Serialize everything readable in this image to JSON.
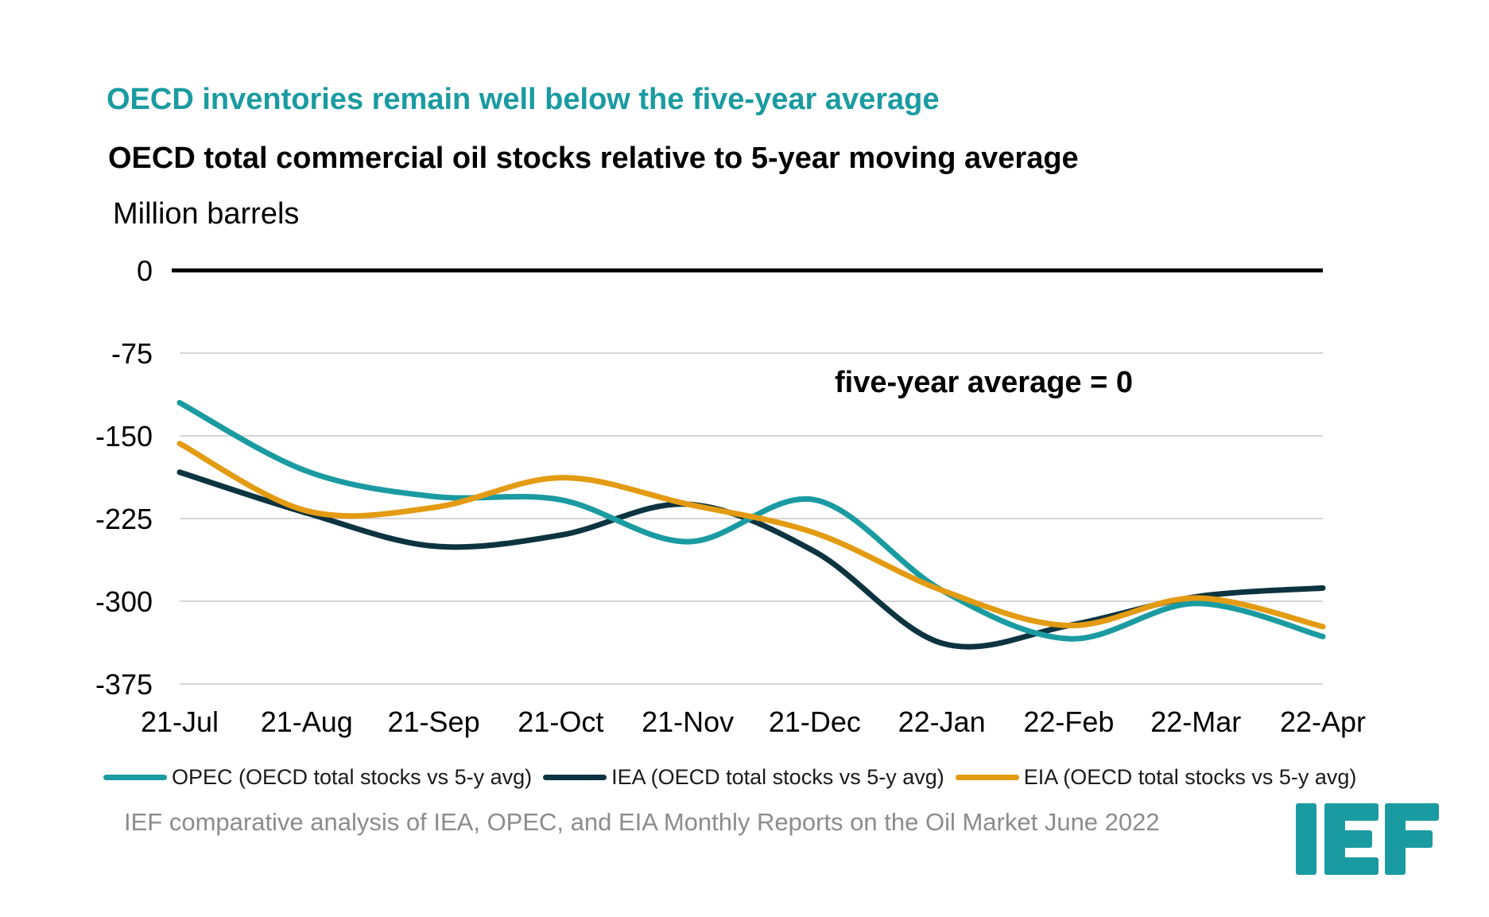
{
  "headline": "OECD inventories remain well below the five-year average",
  "chart_data": {
    "type": "line",
    "title": "OECD total commercial oil stocks relative to 5-year moving average",
    "ylabel": "Million barrels",
    "xlabel": "",
    "categories": [
      "21-Jul",
      "21-Aug",
      "21-Sep",
      "21-Oct",
      "21-Nov",
      "21-Dec",
      "22-Jan",
      "22-Feb",
      "22-Mar",
      "22-Apr"
    ],
    "yticks": [
      0,
      -75,
      -150,
      -225,
      -300,
      -375
    ],
    "ytick_labels": [
      "0",
      "-75",
      "-150",
      "-225",
      "-300",
      "-375"
    ],
    "ylim": [
      -375,
      0
    ],
    "grid": true,
    "zero_line": true,
    "annotation": "five-year average = 0",
    "series": [
      {
        "name": "OPEC (OECD total stocks vs 5-y avg)",
        "color": "#1a9ba1",
        "values": [
          -120,
          -182,
          -205,
          -208,
          -246,
          -208,
          -290,
          -334,
          -302,
          -332
        ]
      },
      {
        "name": "IEA (OECD total stocks vs 5-y avg)",
        "color": "#0c3440",
        "values": [
          -183,
          -220,
          -250,
          -240,
          -212,
          -255,
          -338,
          -322,
          -296,
          -288
        ]
      },
      {
        "name": "EIA (OECD total stocks vs 5-y avg)",
        "color": "#e39b12",
        "values": [
          -157,
          -218,
          -215,
          -188,
          -212,
          -238,
          -290,
          -322,
          -297,
          -323
        ]
      }
    ],
    "legend_position": "bottom"
  },
  "source": "IEF comparative analysis of IEA, OPEC, and EIA Monthly Reports on the Oil Market June 2022",
  "logo": {
    "text": "IEF",
    "color": "#1a9ba1"
  }
}
